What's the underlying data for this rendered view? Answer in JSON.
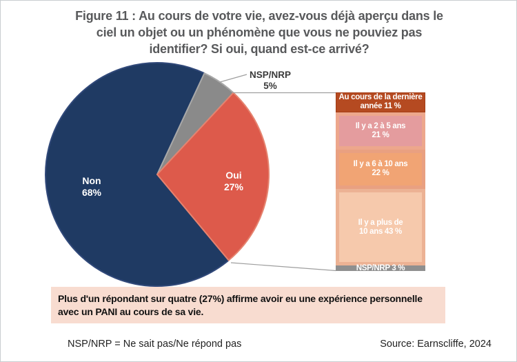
{
  "figure": {
    "title_lines": [
      "Figure 11 : Au cours de votre vie, avez-vous déjà aperçu dans le",
      "ciel un objet ou un phénomène que vous ne pouviez pas",
      "identifier? Si oui, quand est-ce arrivé?"
    ]
  },
  "chart_data": {
    "type": "pie",
    "title": "Figure 11 : Au cours de votre vie, avez-vous déjà aperçu dans le ciel un objet ou un phénomène que vous ne pouviez pas identifier? Si oui, quand est-ce arrivé?",
    "legend_position": "none",
    "pie": {
      "start_angle_deg": 25,
      "series": [
        {
          "name": "nsp-nrp",
          "label": "NSP/NRP",
          "pct": "5%",
          "value": 5,
          "color": "#8A8A8A",
          "stroke": "#A9A9A9",
          "label_placement": "outside"
        },
        {
          "name": "oui",
          "label": "Oui",
          "pct": "27%",
          "value": 27,
          "color": "#DD5A4B",
          "stroke": "#E5836F",
          "label_placement": "inside"
        },
        {
          "name": "non",
          "label": "Non",
          "pct": "68%",
          "value": 68,
          "color": "#1F3A63",
          "stroke": "#31497A",
          "label_placement": "inside"
        }
      ]
    },
    "breakdown_bar": {
      "applies_to": "Oui",
      "segments": [
        {
          "line1": "Au cours de la dernière",
          "line2": "année 11 %",
          "value": 11,
          "fill": "#B54A21",
          "border": "#A23D16",
          "inset": false
        },
        {
          "line1": "Il y a 2 à 5 ans",
          "line2": "21 %",
          "value": 21,
          "fill": "#E49C9E",
          "border": "#EDA78C",
          "inset": true
        },
        {
          "line1": "Il y a 6 à 10 ans",
          "line2": "22 %",
          "value": 22,
          "fill": "#F1A474",
          "border": "#E9A081",
          "inset": true
        },
        {
          "line1": "Il y a plus de",
          "line2": "10 ans 43 %",
          "value": 43,
          "fill": "#F6C9AC",
          "border": "#ECB294",
          "inset": true
        },
        {
          "line1": "NSP/NRP 3 %",
          "line2": "",
          "value": 3,
          "fill": "#8F8F8F",
          "border": "#8F8F8F",
          "inset": false
        }
      ]
    }
  },
  "callout": {
    "bg": "#F8DCD0",
    "lines": [
      "Plus d'un répondant sur quatre (27%) affirme avoir eu une expérience personnelle",
      "avec un PANI au cours de sa vie."
    ]
  },
  "footnote": "NSP/NRP = Ne sait pas/Ne répond pas",
  "source": "Source: Earnscliffe, 2024"
}
